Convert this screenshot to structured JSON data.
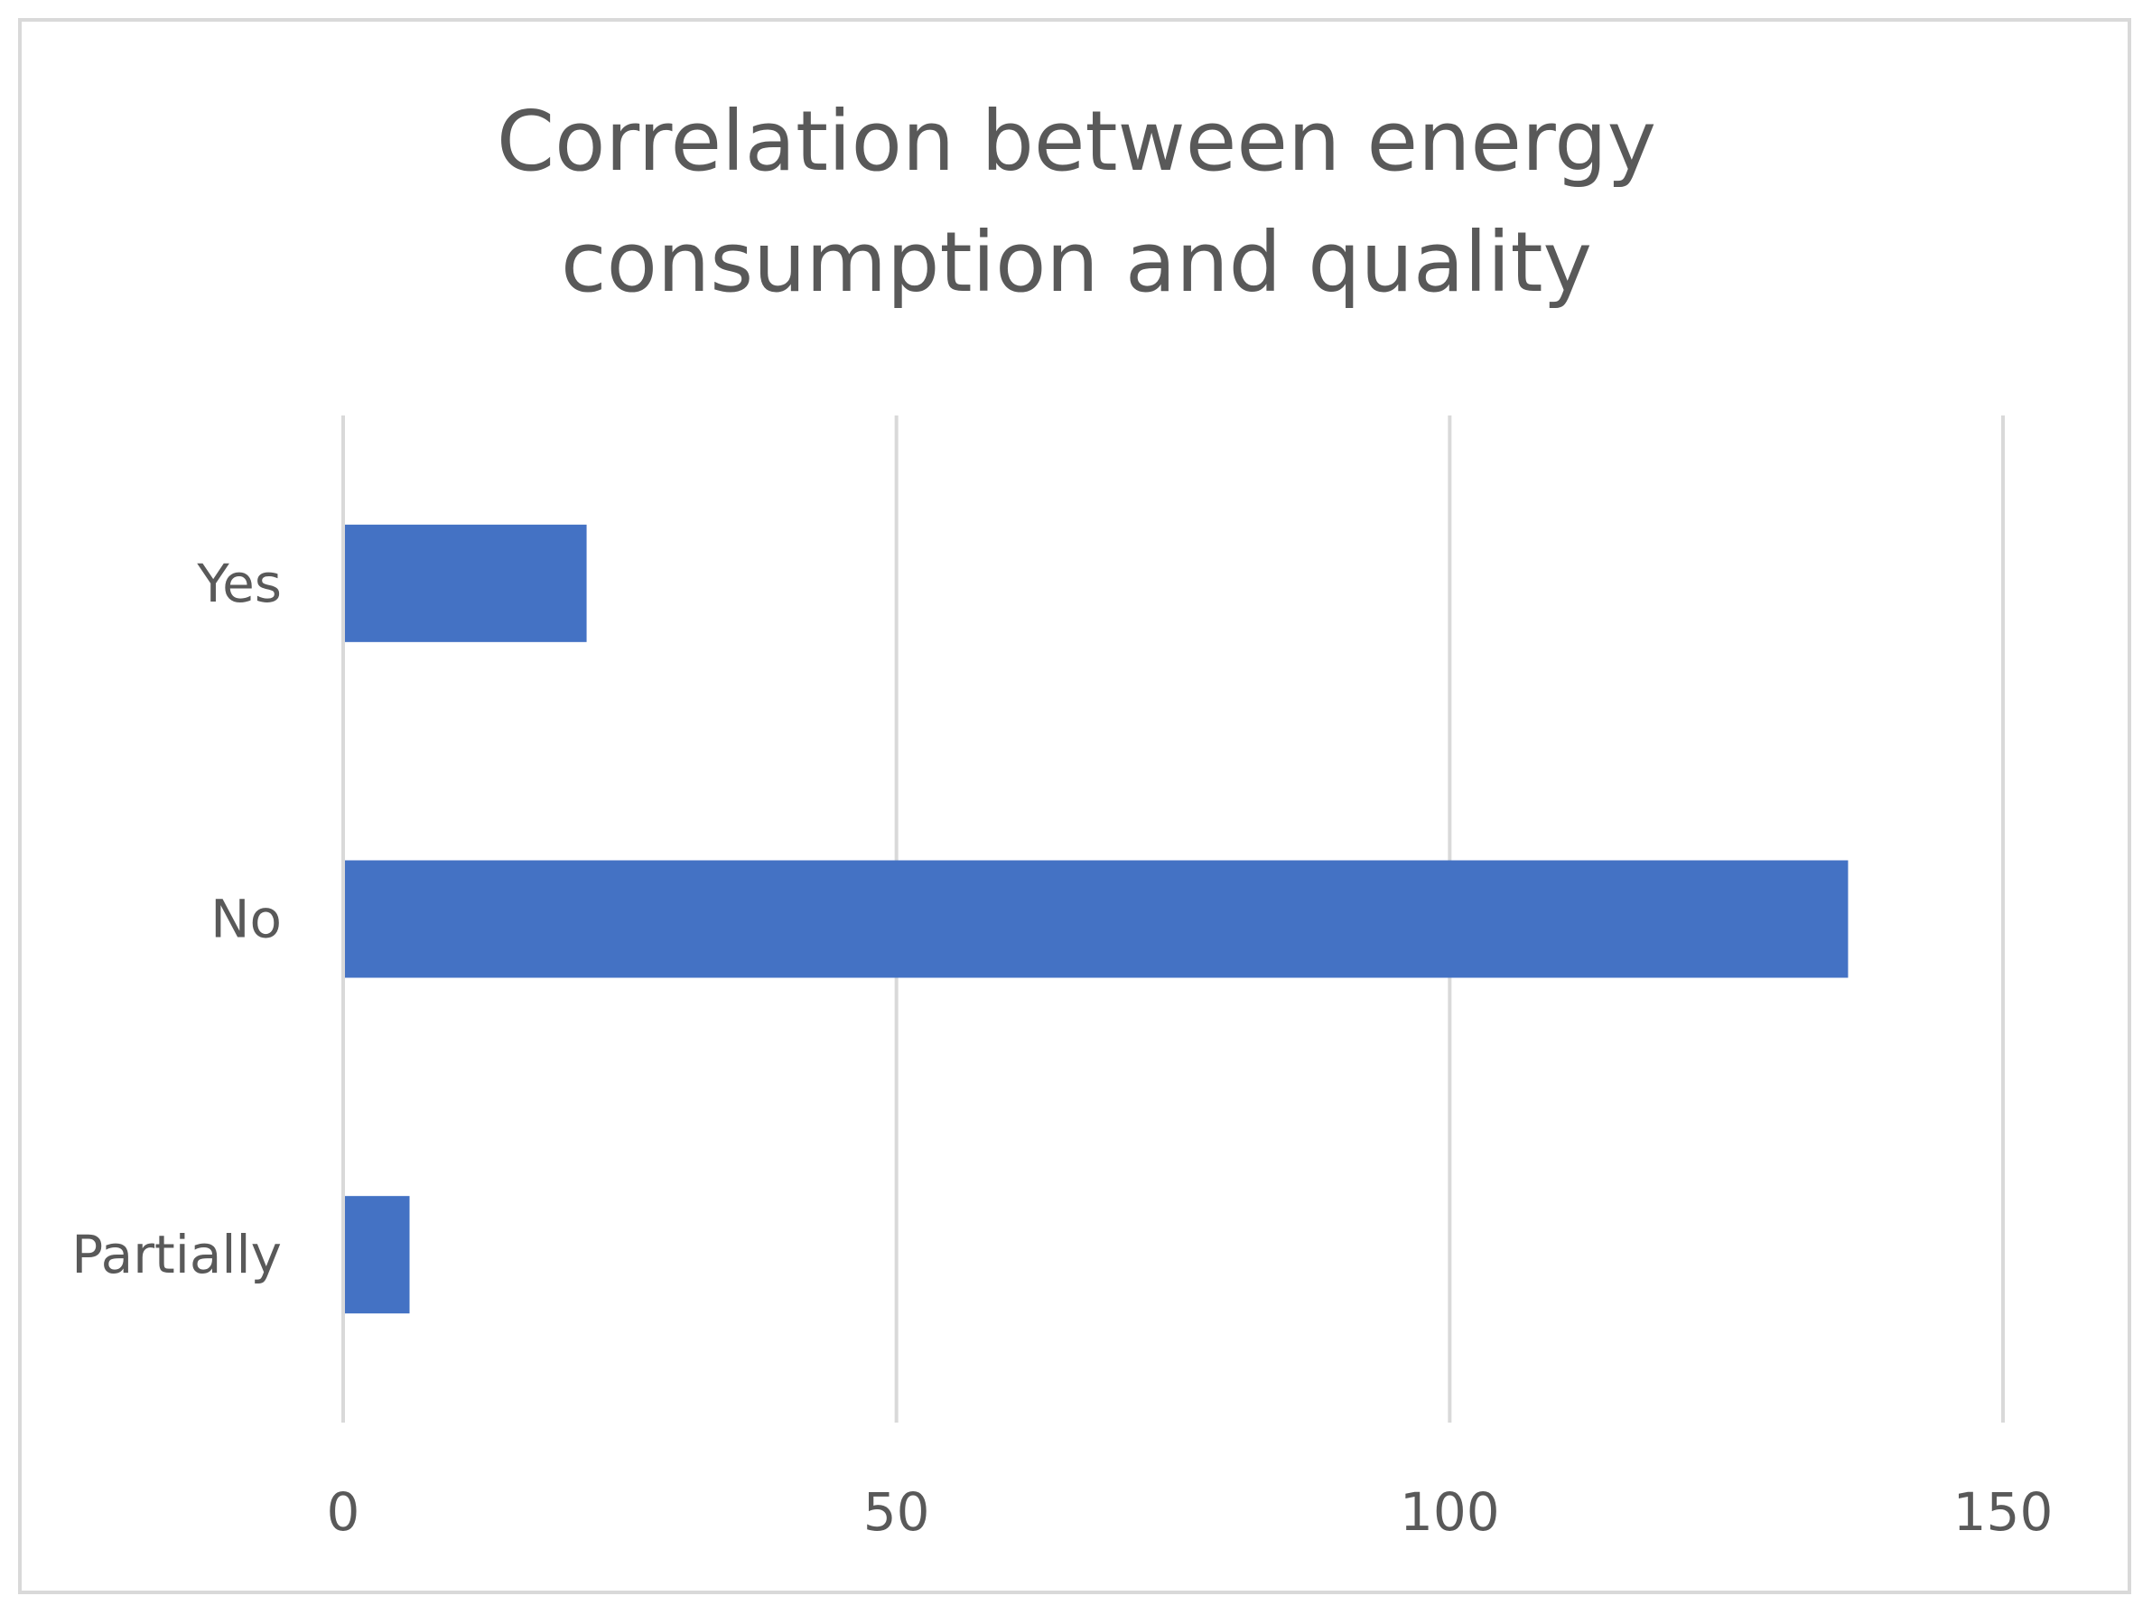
{
  "chart_data": {
    "type": "bar",
    "orientation": "horizontal",
    "title_lines": [
      "Correlation between energy",
      "consumption and quality"
    ],
    "categories": [
      "Yes",
      "No",
      "Partially"
    ],
    "values": [
      22,
      136,
      6
    ],
    "xticks": [
      0,
      50,
      100,
      150
    ],
    "xlim": [
      0,
      150
    ],
    "xlabel": "",
    "ylabel": "",
    "grid": true,
    "legend": "none",
    "bar_color": "#4472C4",
    "grid_color": "#d9d9d9",
    "text_color": "#595959"
  }
}
